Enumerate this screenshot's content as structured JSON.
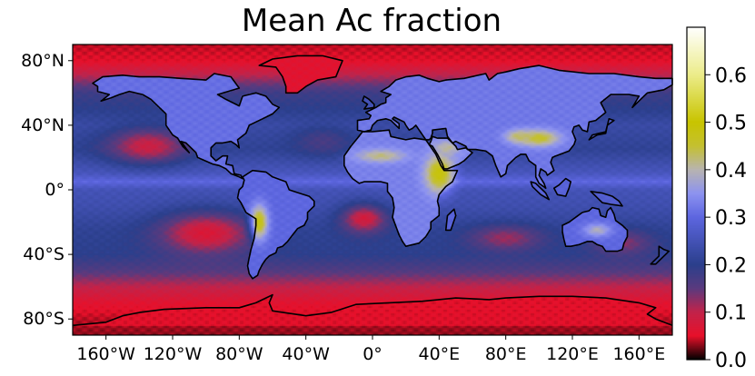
{
  "chart_data": {
    "type": "heatmap",
    "title": "Mean Ac fraction",
    "xlabel": "",
    "ylabel": "",
    "projection": "plate-carree",
    "xlim": [
      -180,
      180
    ],
    "ylim": [
      -90,
      90
    ],
    "x_ticks": [
      {
        "value": -160,
        "label": "160°W"
      },
      {
        "value": -120,
        "label": "120°W"
      },
      {
        "value": -80,
        "label": "80°W"
      },
      {
        "value": -40,
        "label": "40°W"
      },
      {
        "value": 0,
        "label": "0°"
      },
      {
        "value": 40,
        "label": "40°E"
      },
      {
        "value": 80,
        "label": "80°E"
      },
      {
        "value": 120,
        "label": "120°E"
      },
      {
        "value": 160,
        "label": "160°E"
      }
    ],
    "y_ticks": [
      {
        "value": 80,
        "label": "80°N"
      },
      {
        "value": 40,
        "label": "40°N"
      },
      {
        "value": 0,
        "label": "0°"
      },
      {
        "value": -40,
        "label": "40°S"
      },
      {
        "value": -80,
        "label": "80°S"
      }
    ],
    "colorbar": {
      "range": [
        0.0,
        0.7
      ],
      "ticks": [
        {
          "value": 0.0,
          "label": "0.0"
        },
        {
          "value": 0.1,
          "label": "0.1"
        },
        {
          "value": 0.2,
          "label": "0.2"
        },
        {
          "value": 0.3,
          "label": "0.3"
        },
        {
          "value": 0.4,
          "label": "0.4"
        },
        {
          "value": 0.5,
          "label": "0.5"
        },
        {
          "value": 0.6,
          "label": "0.6"
        }
      ],
      "colormap_stops": [
        {
          "value": 0.0,
          "color": "#000000"
        },
        {
          "value": 0.05,
          "color": "#e8102a"
        },
        {
          "value": 0.1,
          "color": "#c2234a"
        },
        {
          "value": 0.15,
          "color": "#5a3a7e"
        },
        {
          "value": 0.2,
          "color": "#2b3f8c"
        },
        {
          "value": 0.3,
          "color": "#5d66e0"
        },
        {
          "value": 0.35,
          "color": "#8d93f0"
        },
        {
          "value": 0.4,
          "color": "#b8b4b0"
        },
        {
          "value": 0.45,
          "color": "#c4c030"
        },
        {
          "value": 0.5,
          "color": "#c8c400"
        },
        {
          "value": 0.6,
          "color": "#ecec8a"
        },
        {
          "value": 0.7,
          "color": "#ffffff"
        }
      ]
    },
    "field_model": {
      "ocean_bands": [
        {
          "lat": 90,
          "value": 0.04
        },
        {
          "lat": 80,
          "value": 0.05
        },
        {
          "lat": 70,
          "value": 0.11
        },
        {
          "lat": 60,
          "value": 0.18
        },
        {
          "lat": 50,
          "value": 0.2
        },
        {
          "lat": 40,
          "value": 0.23
        },
        {
          "lat": 25,
          "value": 0.21
        },
        {
          "lat": 10,
          "value": 0.26
        },
        {
          "lat": 5,
          "value": 0.3
        },
        {
          "lat": 0,
          "value": 0.25
        },
        {
          "lat": -10,
          "value": 0.24
        },
        {
          "lat": -25,
          "value": 0.21
        },
        {
          "lat": -40,
          "value": 0.2
        },
        {
          "lat": -50,
          "value": 0.16
        },
        {
          "lat": -60,
          "value": 0.1
        },
        {
          "lat": -70,
          "value": 0.06
        },
        {
          "lat": -80,
          "value": 0.04
        },
        {
          "lat": -90,
          "value": 0.03
        }
      ],
      "anomalies": [
        {
          "lon": -135,
          "lat": 27,
          "rlon": 24,
          "rlat": 11,
          "value": 0.09
        },
        {
          "lon": -100,
          "lat": -27,
          "rlon": 28,
          "rlat": 13,
          "value": 0.07
        },
        {
          "lon": -5,
          "lat": -18,
          "rlon": 14,
          "rlat": 9,
          "value": 0.08
        },
        {
          "lon": 80,
          "lat": -30,
          "rlon": 22,
          "rlat": 8,
          "value": 0.12
        },
        {
          "lon": 150,
          "lat": -33,
          "rlon": 18,
          "rlat": 8,
          "value": 0.13
        },
        {
          "lon": -30,
          "lat": 30,
          "rlon": 18,
          "rlat": 9,
          "value": 0.17
        }
      ],
      "land_regions": [
        {
          "name": "North America",
          "value": 0.31
        },
        {
          "name": "Greenland",
          "value": 0.06
        },
        {
          "name": "South America",
          "value": 0.3
        },
        {
          "name": "Africa",
          "value": 0.33
        },
        {
          "name": "Eurasia",
          "value": 0.32
        },
        {
          "name": "Arabia",
          "value": 0.34
        },
        {
          "name": "Australia",
          "value": 0.3
        },
        {
          "name": "Antarctica",
          "value": 0.05
        },
        {
          "name": "Madagascar",
          "value": 0.29
        },
        {
          "name": "Borneo",
          "value": 0.29
        },
        {
          "name": "Sumatra",
          "value": 0.29
        },
        {
          "name": "New Guinea",
          "value": 0.28
        },
        {
          "name": "Japan",
          "value": 0.28
        },
        {
          "name": "United Kingdom",
          "value": 0.25
        },
        {
          "name": "New Zealand",
          "value": 0.22
        }
      ],
      "hotspots": [
        {
          "lon": 40,
          "lat": 10,
          "rlon": 8,
          "rlat": 11,
          "value": 0.49
        },
        {
          "lon": 100,
          "lat": 32,
          "rlon": 12,
          "rlat": 5,
          "value": 0.46
        },
        {
          "lon": 88,
          "lat": 33,
          "rlon": 8,
          "rlat": 4,
          "value": 0.43
        },
        {
          "lon": -68,
          "lat": -20,
          "rlon": 5,
          "rlat": 10,
          "value": 0.48
        },
        {
          "lon": 5,
          "lat": 21,
          "rlon": 14,
          "rlat": 4,
          "value": 0.42
        },
        {
          "lon": 45,
          "lat": 26,
          "rlon": 7,
          "rlat": 4,
          "value": 0.41
        },
        {
          "lon": 135,
          "lat": -25,
          "rlon": 8,
          "rlat": 4,
          "value": 0.39
        }
      ]
    }
  }
}
